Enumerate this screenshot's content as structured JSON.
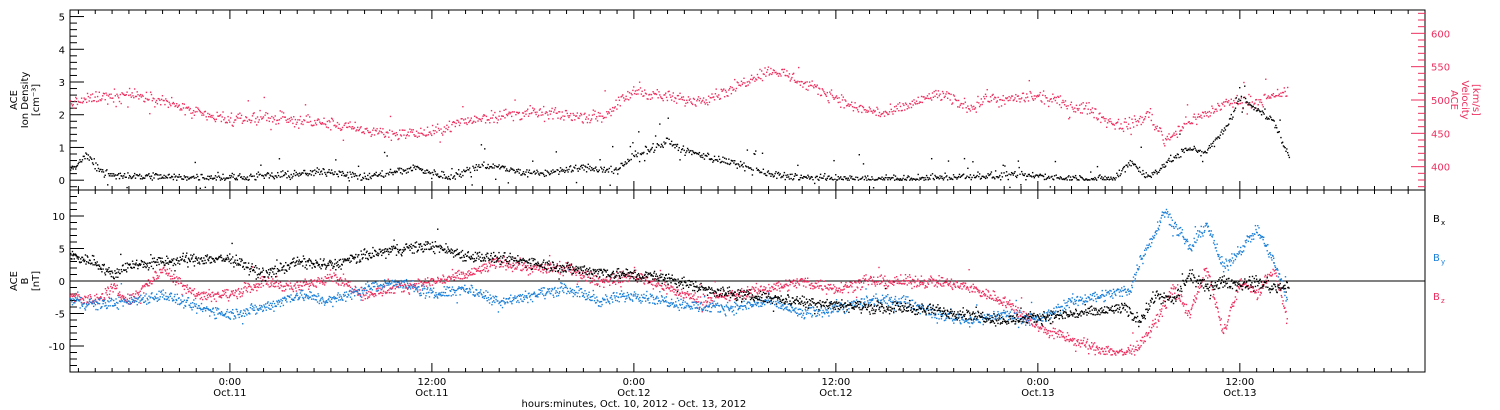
{
  "colors": {
    "black": "#000000",
    "pink": "#ee2f5f",
    "blue": "#1a7fd8"
  },
  "x_axis": {
    "title": "hours:minutes, Oct. 10, 2012 - Oct. 13, 2012",
    "ticks": [
      {
        "hour": 24,
        "label1": "0:00",
        "label2": "Oct.11"
      },
      {
        "hour": 36,
        "label1": "12:00",
        "label2": "Oct.11"
      },
      {
        "hour": 48,
        "label1": "0:00",
        "label2": "Oct.12"
      },
      {
        "hour": 60,
        "label1": "12:00",
        "label2": "Oct.12"
      },
      {
        "hour": 72,
        "label1": "0:00",
        "label2": "Oct.13"
      },
      {
        "hour": 84,
        "label1": "12:00",
        "label2": "Oct.13"
      }
    ]
  },
  "chart_data": [
    {
      "type": "scatter",
      "panel": "top",
      "x_range_hours": [
        14.5,
        95.0
      ],
      "left_axis": {
        "label_lines": [
          "ACE",
          "Ion Density",
          "[cm⁻³]"
        ],
        "ylim": [
          -0.3,
          5.2
        ],
        "tick_values": [
          0,
          1,
          2,
          3,
          4,
          5
        ]
      },
      "right_axis": {
        "label_lines": [
          "ACE",
          "Velocity",
          "[km/s]"
        ],
        "ylim": [
          365,
          635
        ],
        "tick_values": [
          400,
          450,
          500,
          550,
          600
        ],
        "color": "pink"
      },
      "series": [
        {
          "color": "black",
          "axis": "left",
          "anchors": [
            [
              14.5,
              0.3
            ],
            [
              15.5,
              0.8
            ],
            [
              16.5,
              0.2
            ],
            [
              18,
              0.15
            ],
            [
              21,
              0.1
            ],
            [
              25,
              0.1
            ],
            [
              28,
              0.2
            ],
            [
              30,
              0.3
            ],
            [
              32,
              0.1
            ],
            [
              35,
              0.4
            ],
            [
              37,
              0.1
            ],
            [
              39,
              0.5
            ],
            [
              42,
              0.2
            ],
            [
              45,
              0.4
            ],
            [
              47,
              0.3
            ],
            [
              48,
              0.8
            ],
            [
              49,
              1.0
            ],
            [
              50,
              1.2
            ],
            [
              51,
              0.9
            ],
            [
              52,
              0.8
            ],
            [
              54,
              0.5
            ],
            [
              56,
              0.2
            ],
            [
              58,
              0.1
            ],
            [
              60,
              0.05
            ],
            [
              64,
              0.05
            ],
            [
              66,
              0.1
            ],
            [
              68,
              0.15
            ],
            [
              72,
              0.15
            ],
            [
              75,
              0.05
            ],
            [
              76.5,
              0.05
            ],
            [
              77.5,
              0.6
            ],
            [
              78.5,
              0.1
            ],
            [
              80,
              0.7
            ],
            [
              81,
              1.0
            ],
            [
              82,
              0.9
            ],
            [
              83,
              1.5
            ],
            [
              84,
              2.5
            ],
            [
              85,
              2.2
            ],
            [
              86,
              1.8
            ],
            [
              86.9,
              0.7
            ]
          ]
        },
        {
          "color": "pink",
          "axis": "right",
          "anchors": [
            [
              14.5,
              495
            ],
            [
              16,
              505
            ],
            [
              18,
              510
            ],
            [
              20,
              500
            ],
            [
              22,
              480
            ],
            [
              24,
              470
            ],
            [
              26,
              475
            ],
            [
              28,
              470
            ],
            [
              30,
              465
            ],
            [
              32,
              455
            ],
            [
              34,
              450
            ],
            [
              36,
              452
            ],
            [
              38,
              470
            ],
            [
              40,
              478
            ],
            [
              42,
              482
            ],
            [
              44,
              478
            ],
            [
              46,
              475
            ],
            [
              47,
              495
            ],
            [
              48,
              515
            ],
            [
              49,
              510
            ],
            [
              50,
              505
            ],
            [
              51,
              500
            ],
            [
              52,
              502
            ],
            [
              53,
              510
            ],
            [
              54,
              520
            ],
            [
              55,
              535
            ],
            [
              56,
              545
            ],
            [
              57,
              540
            ],
            [
              58,
              525
            ],
            [
              59,
              515
            ],
            [
              60,
              505
            ],
            [
              61,
              490
            ],
            [
              62,
              485
            ],
            [
              63,
              480
            ],
            [
              64,
              490
            ],
            [
              65,
              500
            ],
            [
              66,
              510
            ],
            [
              67,
              500
            ],
            [
              68,
              490
            ],
            [
              69,
              505
            ],
            [
              70,
              500
            ],
            [
              71,
              505
            ],
            [
              72,
              505
            ],
            [
              73,
              500
            ],
            [
              74,
              490
            ],
            [
              75,
              488
            ],
            [
              76,
              470
            ],
            [
              77,
              462
            ],
            [
              78,
              470
            ],
            [
              78.5,
              480
            ],
            [
              79,
              462
            ],
            [
              79.5,
              440
            ],
            [
              80,
              450
            ],
            [
              81,
              470
            ],
            [
              82,
              480
            ],
            [
              83,
              495
            ],
            [
              84,
              500
            ],
            [
              85,
              498
            ],
            [
              86,
              505
            ],
            [
              86.8,
              515
            ]
          ]
        }
      ]
    },
    {
      "type": "scatter",
      "panel": "bottom",
      "x_range_hours": [
        14.5,
        95.0
      ],
      "left_axis": {
        "label_lines": [
          "ACE",
          "B",
          "[nT]"
        ],
        "ylim": [
          -14,
          14
        ],
        "tick_values": [
          -10,
          -5,
          0,
          5,
          10
        ]
      },
      "zero_line": true,
      "legend_placement": "right",
      "series": [
        {
          "name": "Bx",
          "legend_main": "B",
          "legend_sub": "x",
          "color": "black",
          "anchors": [
            [
              14.5,
              4
            ],
            [
              16,
              3
            ],
            [
              17,
              1
            ],
            [
              18,
              2.5
            ],
            [
              20,
              3
            ],
            [
              22,
              3.5
            ],
            [
              24,
              3.5
            ],
            [
              26,
              1
            ],
            [
              28,
              3
            ],
            [
              30,
              2.5
            ],
            [
              32,
              4
            ],
            [
              34,
              5
            ],
            [
              36,
              5.5
            ],
            [
              38,
              4
            ],
            [
              40,
              3.5
            ],
            [
              42,
              3
            ],
            [
              44,
              2
            ],
            [
              46,
              1.5
            ],
            [
              48,
              1
            ],
            [
              50,
              0.5
            ],
            [
              52,
              -1
            ],
            [
              54,
              -2
            ],
            [
              56,
              -2.5
            ],
            [
              58,
              -3
            ],
            [
              60,
              -3.5
            ],
            [
              62,
              -4
            ],
            [
              64,
              -4
            ],
            [
              66,
              -4.5
            ],
            [
              68,
              -5
            ],
            [
              70,
              -6
            ],
            [
              72,
              -5.5
            ],
            [
              74,
              -5
            ],
            [
              76,
              -4.5
            ],
            [
              77,
              -4
            ],
            [
              78,
              -6
            ],
            [
              79,
              -2
            ],
            [
              80,
              -3
            ],
            [
              81,
              1
            ],
            [
              82,
              -1
            ],
            [
              83,
              0
            ],
            [
              84,
              -0.5
            ],
            [
              85,
              0
            ],
            [
              86,
              -1
            ],
            [
              86.9,
              -0.5
            ]
          ]
        },
        {
          "name": "By",
          "legend_main": "B",
          "legend_sub": "y",
          "color": "blue",
          "anchors": [
            [
              14.5,
              -3
            ],
            [
              16,
              -3.5
            ],
            [
              18,
              -3
            ],
            [
              20,
              -2
            ],
            [
              22,
              -4
            ],
            [
              24,
              -5
            ],
            [
              26,
              -4
            ],
            [
              28,
              -2
            ],
            [
              30,
              -3
            ],
            [
              32,
              -1
            ],
            [
              34,
              0
            ],
            [
              36,
              -2
            ],
            [
              38,
              -1
            ],
            [
              40,
              -3
            ],
            [
              42,
              -2
            ],
            [
              44,
              -1
            ],
            [
              46,
              -3
            ],
            [
              48,
              -2
            ],
            [
              50,
              -3
            ],
            [
              52,
              -4
            ],
            [
              54,
              -4
            ],
            [
              56,
              -3
            ],
            [
              58,
              -5
            ],
            [
              60,
              -4
            ],
            [
              62,
              -3
            ],
            [
              64,
              -3
            ],
            [
              66,
              -5
            ],
            [
              68,
              -6
            ],
            [
              70,
              -5
            ],
            [
              72,
              -6
            ],
            [
              73,
              -4.5
            ],
            [
              74,
              -3
            ],
            [
              75,
              -2.5
            ],
            [
              76,
              -2
            ],
            [
              77,
              -1.5
            ],
            [
              77.5,
              -1
            ],
            [
              78,
              3
            ],
            [
              79,
              8
            ],
            [
              79.5,
              11
            ],
            [
              80,
              9
            ],
            [
              81,
              5
            ],
            [
              82,
              9
            ],
            [
              83,
              2
            ],
            [
              84,
              5
            ],
            [
              85,
              8
            ],
            [
              86,
              3
            ],
            [
              86.8,
              -3
            ]
          ]
        },
        {
          "name": "Bz",
          "legend_main": "B",
          "legend_sub": "z",
          "color": "pink",
          "anchors": [
            [
              14.5,
              -2
            ],
            [
              16,
              -3
            ],
            [
              17,
              -1
            ],
            [
              18,
              -3
            ],
            [
              20,
              2
            ],
            [
              22,
              -2
            ],
            [
              24,
              -2
            ],
            [
              26,
              0
            ],
            [
              28,
              -1
            ],
            [
              30,
              1
            ],
            [
              32,
              -2
            ],
            [
              34,
              -1
            ],
            [
              36,
              0
            ],
            [
              38,
              1
            ],
            [
              40,
              3
            ],
            [
              42,
              2
            ],
            [
              44,
              2
            ],
            [
              46,
              0
            ],
            [
              48,
              1
            ],
            [
              50,
              -1
            ],
            [
              52,
              -3
            ],
            [
              54,
              -2
            ],
            [
              56,
              -1
            ],
            [
              58,
              0
            ],
            [
              60,
              -1
            ],
            [
              62,
              0
            ],
            [
              64,
              0
            ],
            [
              66,
              0
            ],
            [
              68,
              -1
            ],
            [
              70,
              -3
            ],
            [
              72,
              -7
            ],
            [
              73,
              -8
            ],
            [
              74,
              -9
            ],
            [
              75,
              -10
            ],
            [
              76,
              -10.5
            ],
            [
              77,
              -11
            ],
            [
              78,
              -10
            ],
            [
              79,
              -6
            ],
            [
              80,
              -1
            ],
            [
              81,
              -5
            ],
            [
              82,
              2
            ],
            [
              83,
              -8
            ],
            [
              84,
              0
            ],
            [
              85,
              -2
            ],
            [
              86,
              2
            ],
            [
              86.8,
              -6
            ]
          ]
        }
      ]
    }
  ]
}
